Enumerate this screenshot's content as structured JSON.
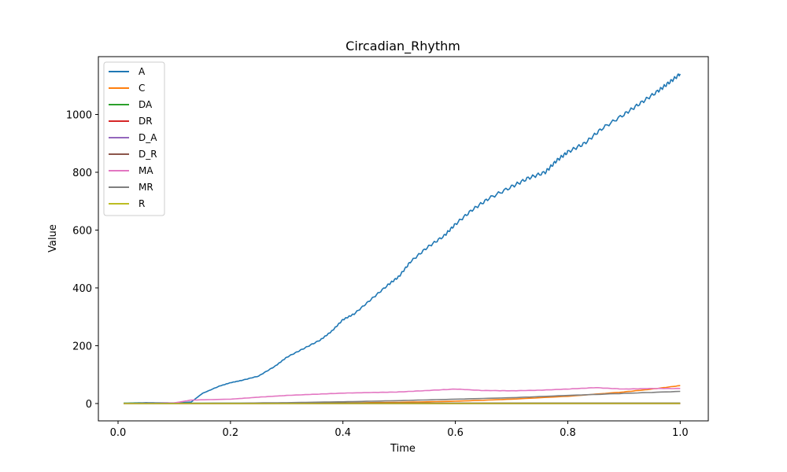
{
  "chart_data": {
    "type": "line",
    "title": "Circadian_Rhythm",
    "xlabel": "Time",
    "ylabel": "Value",
    "xlim": [
      -0.035,
      1.05
    ],
    "ylim": [
      -60,
      1200
    ],
    "xticks": [
      0.0,
      0.2,
      0.4,
      0.6,
      0.8,
      1.0
    ],
    "yticks": [
      0,
      200,
      400,
      600,
      800,
      1000
    ],
    "grid": false,
    "legend_position": "upper-left",
    "series": [
      {
        "name": "A",
        "color": "#1f77b4",
        "x": [
          0.01,
          0.05,
          0.1,
          0.13,
          0.15,
          0.18,
          0.2,
          0.22,
          0.25,
          0.28,
          0.3,
          0.33,
          0.36,
          0.38,
          0.4,
          0.42,
          0.45,
          0.48,
          0.5,
          0.52,
          0.55,
          0.58,
          0.6,
          0.63,
          0.66,
          0.7,
          0.73,
          0.76,
          0.78,
          0.8,
          0.83,
          0.86,
          0.9,
          0.93,
          0.96,
          0.98,
          1.0
        ],
        "y": [
          1,
          3,
          2,
          5,
          35,
          60,
          72,
          80,
          95,
          130,
          160,
          190,
          220,
          250,
          290,
          310,
          360,
          410,
          440,
          490,
          540,
          580,
          620,
          670,
          710,
          750,
          780,
          800,
          840,
          870,
          900,
          950,
          1000,
          1040,
          1080,
          1110,
          1140
        ]
      },
      {
        "name": "C",
        "color": "#ff7f0e",
        "x": [
          0.01,
          0.2,
          0.4,
          0.5,
          0.6,
          0.7,
          0.8,
          0.9,
          0.95,
          1.0
        ],
        "y": [
          0,
          0,
          2,
          4,
          8,
          15,
          25,
          40,
          50,
          62
        ]
      },
      {
        "name": "DA",
        "color": "#2ca02c",
        "x": [
          0.01,
          0.5,
          1.0
        ],
        "y": [
          1,
          1,
          1
        ]
      },
      {
        "name": "DR",
        "color": "#d62728",
        "x": [
          0.01,
          0.5,
          1.0
        ],
        "y": [
          0,
          0,
          0
        ]
      },
      {
        "name": "D_A",
        "color": "#9467bd",
        "x": [
          0.01,
          0.5,
          1.0
        ],
        "y": [
          0,
          0,
          0
        ]
      },
      {
        "name": "D_R",
        "color": "#8c564b",
        "x": [
          0.01,
          0.5,
          1.0
        ],
        "y": [
          0,
          1,
          1
        ]
      },
      {
        "name": "MA",
        "color": "#e377c2",
        "x": [
          0.01,
          0.1,
          0.13,
          0.2,
          0.25,
          0.3,
          0.35,
          0.4,
          0.45,
          0.5,
          0.55,
          0.6,
          0.65,
          0.7,
          0.75,
          0.8,
          0.85,
          0.9,
          0.95,
          1.0
        ],
        "y": [
          0,
          2,
          12,
          15,
          22,
          28,
          32,
          36,
          38,
          40,
          45,
          50,
          45,
          44,
          46,
          50,
          55,
          50,
          52,
          52
        ]
      },
      {
        "name": "MR",
        "color": "#7f7f7f",
        "x": [
          0.01,
          0.2,
          0.3,
          0.4,
          0.5,
          0.6,
          0.7,
          0.8,
          0.9,
          1.0
        ],
        "y": [
          0,
          1,
          3,
          6,
          10,
          15,
          20,
          28,
          35,
          42
        ]
      },
      {
        "name": "R",
        "color": "#bcbd22",
        "x": [
          0.01,
          0.5,
          1.0
        ],
        "y": [
          0,
          0,
          0
        ]
      }
    ]
  }
}
